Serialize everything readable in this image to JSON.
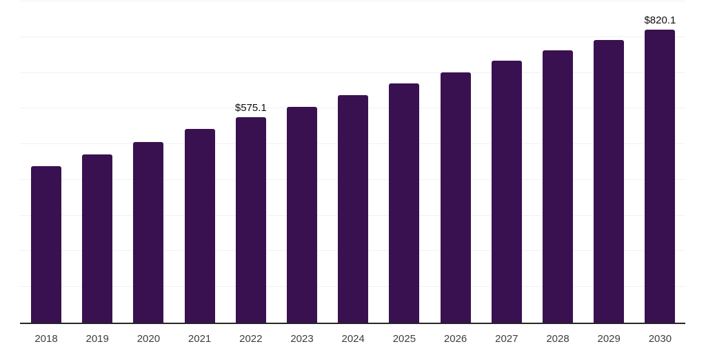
{
  "chart_data": {
    "type": "bar",
    "title": "",
    "xlabel": "",
    "ylabel": "",
    "legend": "none",
    "grid": "horizontal-only",
    "ylim": [
      0,
      900
    ],
    "gridline_step": 100,
    "categories": [
      "2018",
      "2019",
      "2020",
      "2021",
      "2022",
      "2023",
      "2024",
      "2025",
      "2026",
      "2027",
      "2028",
      "2029",
      "2030"
    ],
    "values": [
      439,
      471,
      506,
      542,
      575.1,
      605,
      638,
      670,
      702,
      733,
      763,
      792,
      820.1
    ],
    "data_labels": [
      null,
      null,
      null,
      null,
      "$575.1",
      null,
      null,
      null,
      null,
      null,
      null,
      null,
      "$820.1"
    ],
    "colors": {
      "bar": "#391150",
      "gridline": "#f1f1f1",
      "axis_line": "#262626",
      "tick_label": "#3d3d3d",
      "data_label": "#0e0e0e",
      "background": "#ffffff"
    }
  }
}
